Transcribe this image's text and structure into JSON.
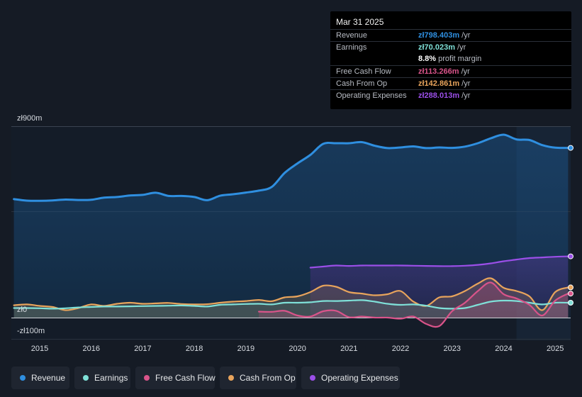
{
  "tooltip": {
    "date": "Mar 31 2025",
    "rows": [
      {
        "label": "Revenue",
        "value": "zł798.403m",
        "unit": "/yr",
        "color": "#2f8fe0"
      },
      {
        "label": "Earnings",
        "value": "zł70.023m",
        "unit": "/yr",
        "color": "#7fe0d8"
      },
      {
        "label": "",
        "value": "8.8%",
        "unit": "profit margin",
        "color": "#ffffff"
      },
      {
        "label": "Free Cash Flow",
        "value": "zł113.266m",
        "unit": "/yr",
        "color": "#d9548a"
      },
      {
        "label": "Cash From Op",
        "value": "zł142.861m",
        "unit": "/yr",
        "color": "#e8a45c"
      },
      {
        "label": "Operating Expenses",
        "value": "zł288.013m",
        "unit": "/yr",
        "color": "#9b4fe8"
      }
    ]
  },
  "legend": [
    {
      "label": "Revenue",
      "color": "#2f8fe0"
    },
    {
      "label": "Earnings",
      "color": "#7fe0d8"
    },
    {
      "label": "Free Cash Flow",
      "color": "#d9548a"
    },
    {
      "label": "Cash From Op",
      "color": "#e8a45c"
    },
    {
      "label": "Operating Expenses",
      "color": "#9b4fe8"
    }
  ],
  "chart_data": {
    "type": "area",
    "y_label_top": "zł900m",
    "y_label_zero": "zł0",
    "y_label_bottom": "-zł100m",
    "ylim": [
      -100,
      900
    ],
    "xlim": [
      2014.45,
      2025.3
    ],
    "x_ticks": [
      2015,
      2016,
      2017,
      2018,
      2019,
      2020,
      2021,
      2022,
      2023,
      2024,
      2025
    ],
    "tick_labels": [
      "2015",
      "2016",
      "2017",
      "2018",
      "2019",
      "2020",
      "2021",
      "2022",
      "2023",
      "2024",
      "2025"
    ],
    "forecast_start": 2024.25,
    "series": [
      {
        "name": "Revenue",
        "color": "#2f8fe0",
        "x": [
          2014.5,
          2014.75,
          2015.0,
          2015.25,
          2015.5,
          2015.75,
          2016.0,
          2016.25,
          2016.5,
          2016.75,
          2017.0,
          2017.25,
          2017.5,
          2017.75,
          2018.0,
          2018.25,
          2018.5,
          2018.75,
          2019.0,
          2019.25,
          2019.5,
          2019.75,
          2020.0,
          2020.25,
          2020.5,
          2020.75,
          2021.0,
          2021.25,
          2021.5,
          2021.75,
          2022.0,
          2022.25,
          2022.5,
          2022.75,
          2023.0,
          2023.25,
          2023.5,
          2023.75,
          2024.0,
          2024.25,
          2024.5,
          2024.75,
          2025.0,
          2025.25
        ],
        "values": [
          557,
          550,
          549,
          551,
          555,
          553,
          554,
          564,
          567,
          574,
          577,
          587,
          572,
          572,
          567,
          552,
          573,
          580,
          588,
          597,
          614,
          680,
          725,
          765,
          817,
          820,
          820,
          825,
          808,
          797,
          800,
          805,
          797,
          800,
          798,
          804,
          820,
          843,
          860,
          838,
          835,
          811,
          799,
          798
        ]
      },
      {
        "name": "Operating Expenses",
        "color": "#9b4fe8",
        "x": [
          2020.25,
          2020.5,
          2020.75,
          2021.0,
          2021.25,
          2021.5,
          2021.75,
          2022.0,
          2022.25,
          2022.5,
          2022.75,
          2023.0,
          2023.25,
          2023.5,
          2023.75,
          2024.0,
          2024.25,
          2024.5,
          2024.75,
          2025.0,
          2025.25
        ],
        "values": [
          235,
          240,
          245,
          243,
          245,
          245,
          245,
          245,
          244,
          243,
          242,
          242,
          244,
          248,
          255,
          265,
          273,
          280,
          283,
          286,
          288
        ]
      },
      {
        "name": "Cash From Op",
        "color": "#e8a45c",
        "x": [
          2014.5,
          2014.75,
          2015.0,
          2015.25,
          2015.5,
          2015.75,
          2016.0,
          2016.25,
          2016.5,
          2016.75,
          2017.0,
          2017.25,
          2017.5,
          2017.75,
          2018.0,
          2018.25,
          2018.5,
          2018.75,
          2019.0,
          2019.25,
          2019.5,
          2019.75,
          2020.0,
          2020.25,
          2020.5,
          2020.75,
          2021.0,
          2021.25,
          2021.5,
          2021.75,
          2022.0,
          2022.25,
          2022.5,
          2022.75,
          2023.0,
          2023.25,
          2023.5,
          2023.75,
          2024.0,
          2024.25,
          2024.5,
          2024.75,
          2025.0,
          2025.25
        ],
        "values": [
          58,
          62,
          55,
          50,
          35,
          45,
          62,
          55,
          65,
          70,
          65,
          67,
          69,
          64,
          62,
          63,
          70,
          75,
          78,
          83,
          77,
          95,
          100,
          120,
          150,
          145,
          120,
          113,
          105,
          110,
          125,
          75,
          55,
          95,
          100,
          125,
          160,
          185,
          140,
          125,
          100,
          35,
          120,
          142
        ]
      },
      {
        "name": "Earnings",
        "color": "#7fe0d8",
        "x": [
          2014.5,
          2014.75,
          2015.0,
          2015.25,
          2015.5,
          2015.75,
          2016.0,
          2016.25,
          2016.5,
          2016.75,
          2017.0,
          2017.25,
          2017.5,
          2017.75,
          2018.0,
          2018.25,
          2018.5,
          2018.75,
          2019.0,
          2019.25,
          2019.5,
          2019.75,
          2020.0,
          2020.25,
          2020.5,
          2020.75,
          2021.0,
          2021.25,
          2021.5,
          2021.75,
          2022.0,
          2022.25,
          2022.5,
          2022.75,
          2023.0,
          2023.25,
          2023.5,
          2023.75,
          2024.0,
          2024.25,
          2024.5,
          2024.75,
          2025.0,
          2025.25
        ],
        "values": [
          45,
          45,
          44,
          42,
          44,
          48,
          50,
          52,
          52,
          53,
          54,
          55,
          56,
          57,
          55,
          52,
          60,
          62,
          64,
          65,
          62,
          70,
          70,
          72,
          78,
          78,
          80,
          82,
          75,
          65,
          60,
          62,
          56,
          45,
          42,
          45,
          60,
          75,
          80,
          78,
          70,
          62,
          70,
          70
        ]
      },
      {
        "name": "Free Cash Flow",
        "color": "#d9548a",
        "x": [
          2019.25,
          2019.5,
          2019.75,
          2020.0,
          2020.25,
          2020.5,
          2020.75,
          2021.0,
          2021.25,
          2021.5,
          2021.75,
          2022.0,
          2022.25,
          2022.5,
          2022.75,
          2023.0,
          2023.25,
          2023.5,
          2023.75,
          2024.0,
          2024.25,
          2024.5,
          2024.75,
          2025.0,
          2025.25
        ],
        "values": [
          28,
          27,
          32,
          10,
          5,
          30,
          32,
          2,
          5,
          0,
          0,
          -5,
          5,
          -30,
          -40,
          30,
          70,
          125,
          165,
          110,
          90,
          60,
          10,
          80,
          113
        ]
      }
    ]
  }
}
